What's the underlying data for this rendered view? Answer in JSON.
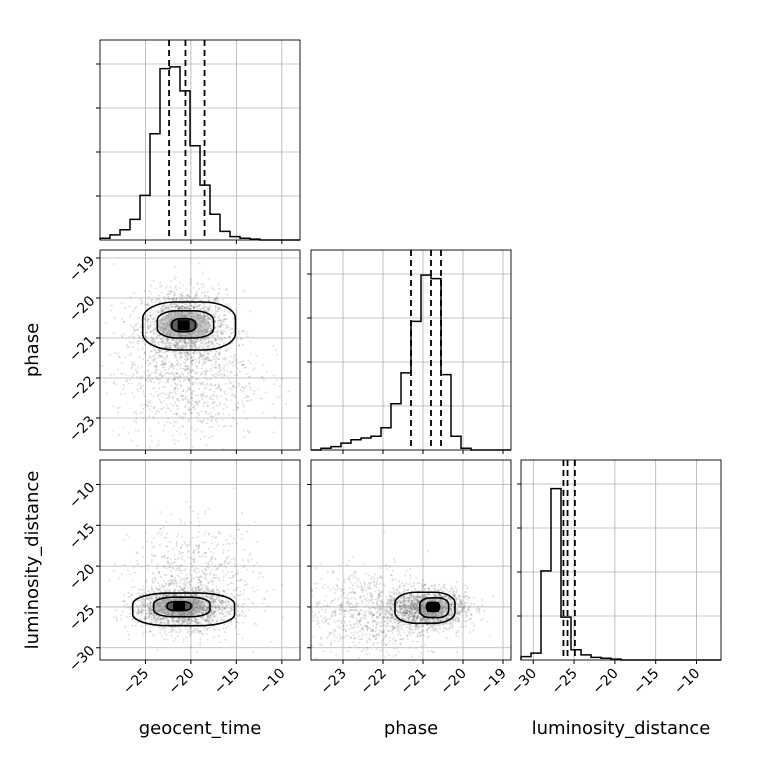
{
  "chart_data": {
    "type": "corner",
    "parameters": [
      "geocent_time",
      "phase",
      "luminosity_distance"
    ],
    "axis_labels": {
      "geocent_time": "geocent_time",
      "phase": "phase",
      "luminosity_distance": "luminosity_distance"
    },
    "ranges": {
      "geocent_time": [
        -30,
        -8
      ],
      "phase": [
        -23.8,
        -18.8
      ],
      "luminosity_distance": [
        -31.5,
        -7
      ]
    },
    "ticks": {
      "geocent_time": [
        {
          "v": -25,
          "label": "−25"
        },
        {
          "v": -20,
          "label": "−20"
        },
        {
          "v": -15,
          "label": "−15"
        },
        {
          "v": -10,
          "label": "−10"
        }
      ],
      "phase": [
        {
          "v": -23,
          "label": "−23"
        },
        {
          "v": -22,
          "label": "−22"
        },
        {
          "v": -21,
          "label": "−21"
        },
        {
          "v": -20,
          "label": "−20"
        },
        {
          "v": -19,
          "label": "−19"
        }
      ],
      "luminosity_distance": [
        {
          "v": -30,
          "label": "−30"
        },
        {
          "v": -25,
          "label": "−25"
        },
        {
          "v": -20,
          "label": "−20"
        },
        {
          "v": -15,
          "label": "−15"
        },
        {
          "v": -10,
          "label": "−10"
        }
      ]
    },
    "grid": true,
    "hist_bins": 20,
    "histograms": {
      "geocent_time": [
        0.01,
        0.03,
        0.06,
        0.12,
        0.26,
        0.62,
        1.0,
        1.01,
        0.87,
        0.55,
        0.32,
        0.15,
        0.05,
        0.02,
        0.01,
        0.005,
        0,
        0,
        0,
        0
      ],
      "phase": [
        0.0,
        0.01,
        0.02,
        0.04,
        0.06,
        0.07,
        0.08,
        0.13,
        0.27,
        0.45,
        0.75,
        1.02,
        1.0,
        0.44,
        0.08,
        0.01,
        0,
        0,
        0,
        0
      ],
      "luminosity_distance": [
        0.02,
        0.04,
        0.52,
        1.0,
        0.25,
        0.06,
        0.03,
        0.015,
        0.01,
        0.005,
        0,
        0,
        0,
        0,
        0,
        0,
        0,
        0,
        0,
        0
      ]
    },
    "quantiles": {
      "geocent_time": [
        -22.4,
        -20.6,
        -18.5
      ],
      "phase": [
        -21.3,
        -20.8,
        -20.55
      ],
      "luminosity_distance": [
        -26.3,
        -25.8,
        -24.9
      ]
    },
    "scatter_pairs": [
      {
        "x": "geocent_time",
        "y": "phase",
        "center": [
          -20.7,
          -20.7
        ],
        "sigma": [
          2.3,
          0.45
        ],
        "n": 1800,
        "tail": {
          "center": [
            -20.5,
            -22.0
          ],
          "sigma": [
            4.0,
            0.8
          ],
          "n": 900
        },
        "contours": [
          {
            "center": [
              -20.8,
              -20.68
            ],
            "rx": 1.3,
            "ry": 0.16
          },
          {
            "center": [
              -20.6,
              -20.66
            ],
            "rx": 3.1,
            "ry": 0.34
          },
          {
            "center": [
              -20.2,
              -20.7
            ],
            "rx": 5.1,
            "ry": 0.6
          }
        ]
      },
      {
        "x": "geocent_time",
        "y": "luminosity_distance",
        "center": [
          -21.0,
          -25.2
        ],
        "sigma": [
          2.6,
          1.2
        ],
        "n": 1800,
        "tail": {
          "center": [
            -19.5,
            -22.0
          ],
          "sigma": [
            3.5,
            3.5
          ],
          "n": 700
        },
        "contours": [
          {
            "center": [
              -21.3,
              -24.9
            ],
            "rx": 1.3,
            "ry": 0.55
          },
          {
            "center": [
              -21.0,
              -25.0
            ],
            "rx": 3.1,
            "ry": 1.2
          },
          {
            "center": [
              -20.8,
              -25.3
            ],
            "rx": 5.6,
            "ry": 2.0
          }
        ]
      },
      {
        "x": "phase",
        "y": "luminosity_distance",
        "center": [
          -20.9,
          -25.2
        ],
        "sigma": [
          0.5,
          1.2
        ],
        "n": 1600,
        "tail": {
          "center": [
            -22.3,
            -25.8
          ],
          "sigma": [
            0.9,
            2.8
          ],
          "n": 900
        },
        "contours": [
          {
            "center": [
              -20.75,
              -25.0
            ],
            "rx": 0.16,
            "ry": 0.55
          },
          {
            "center": [
              -20.72,
              -25.1
            ],
            "rx": 0.36,
            "ry": 1.2
          },
          {
            "center": [
              -20.95,
              -25.1
            ],
            "rx": 0.75,
            "ry": 1.9
          }
        ]
      }
    ]
  }
}
